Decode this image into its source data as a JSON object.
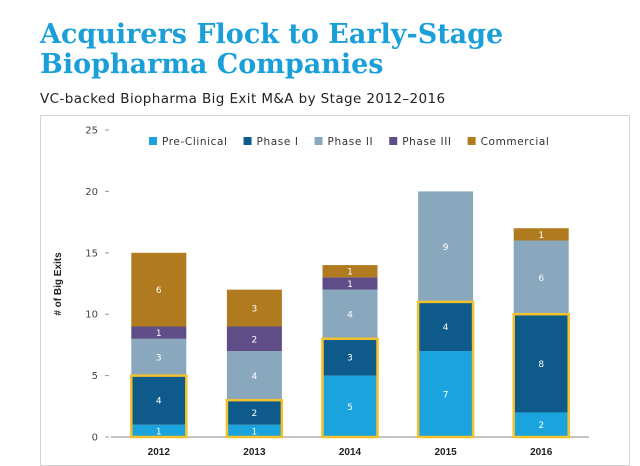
{
  "header": {
    "title": "Acquirers Flock to Early-Stage Biopharma Companies",
    "subtitle": "VC-backed Biopharma Big Exit M&A by Stage 2012–2016"
  },
  "chart_data": {
    "type": "bar",
    "stacked": true,
    "categories": [
      "2012",
      "2013",
      "2014",
      "2015",
      "2016"
    ],
    "ylabel": "# of Big Exits",
    "xlabel": "",
    "ylim": [
      0,
      25
    ],
    "yticks": [
      0,
      5,
      10,
      15,
      20,
      25
    ],
    "grid": false,
    "legend_position": "top",
    "series": [
      {
        "name": "Pre-Clinical",
        "color": "#1ba3dd",
        "values": [
          1,
          1,
          5,
          7,
          2
        ]
      },
      {
        "name": "Phase I",
        "color": "#0e5a8a",
        "values": [
          4,
          2,
          3,
          4,
          8
        ]
      },
      {
        "name": "Phase II",
        "color": "#8aa8bd",
        "values": [
          3,
          4,
          4,
          9,
          6
        ]
      },
      {
        "name": "Phase III",
        "color": "#5e4d86",
        "values": [
          1,
          2,
          1,
          0,
          0
        ]
      },
      {
        "name": "Commercial",
        "color": "#b07a1e",
        "values": [
          6,
          3,
          1,
          0,
          1
        ]
      }
    ],
    "highlight": {
      "color": "#f2c12e",
      "series_included": [
        "Pre-Clinical",
        "Phase I"
      ]
    }
  }
}
